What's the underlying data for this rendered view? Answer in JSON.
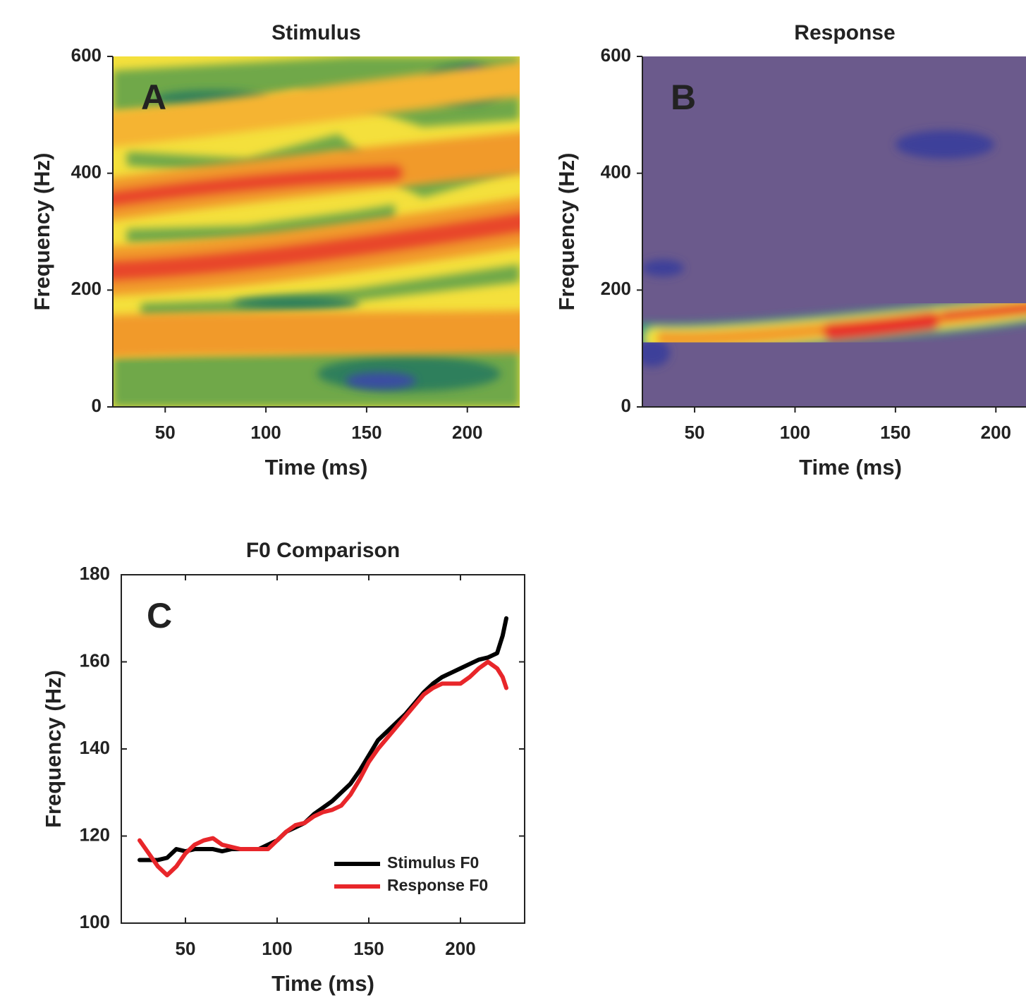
{
  "chart_data": [
    {
      "type": "spectrogram",
      "title": "Stimulus",
      "panel_label": "A",
      "xlabel": "Time (ms)",
      "ylabel": "Frequency (Hz)",
      "xlim": [
        24,
        226
      ],
      "ylim": [
        0,
        600
      ],
      "xticks": [
        50,
        100,
        150,
        200
      ],
      "yticks": [
        0,
        200,
        400,
        600
      ]
    },
    {
      "type": "spectrogram",
      "title": "Response",
      "panel_label": "B",
      "xlabel": "Time (ms)",
      "ylabel": "Frequency (Hz)",
      "xlim": [
        24,
        215
      ],
      "ylim": [
        0,
        600
      ],
      "xticks": [
        50,
        100,
        150,
        200
      ],
      "yticks": [
        0,
        200,
        400,
        600
      ]
    },
    {
      "type": "line",
      "title": "F0 Comparison",
      "panel_label": "C",
      "xlabel": "Time (ms)",
      "ylabel": "Frequency (Hz)",
      "xlim": [
        15,
        235
      ],
      "ylim": [
        100,
        180
      ],
      "xticks": [
        50,
        100,
        150,
        200
      ],
      "yticks": [
        100,
        120,
        140,
        160,
        180
      ],
      "legend": "lower right",
      "x": [
        25,
        30,
        35,
        40,
        45,
        50,
        55,
        60,
        65,
        70,
        75,
        80,
        85,
        90,
        95,
        100,
        105,
        110,
        115,
        120,
        125,
        130,
        135,
        140,
        145,
        150,
        155,
        160,
        165,
        170,
        175,
        180,
        185,
        190,
        195,
        200,
        205,
        210,
        215,
        220,
        223,
        225
      ],
      "series": [
        {
          "name": "Stimulus F0",
          "color": "#000000",
          "values": [
            114.5,
            114.5,
            114.5,
            115,
            117,
            116.5,
            117,
            117,
            117,
            116.5,
            117,
            117,
            117,
            117,
            118,
            119,
            121,
            122,
            123,
            125,
            126.5,
            128,
            130,
            132,
            135,
            138.5,
            142,
            144,
            146,
            148,
            150.5,
            153,
            155,
            156.5,
            157.5,
            158.5,
            159.5,
            160.5,
            161,
            162,
            166,
            170
          ]
        },
        {
          "name": "Response F0",
          "color": "#e8262a",
          "values": [
            119,
            116,
            113,
            111,
            113,
            116,
            118,
            119,
            119.5,
            118,
            117.5,
            117,
            117,
            117,
            117,
            119,
            121,
            122.5,
            123,
            124.5,
            125.5,
            126,
            127,
            129.5,
            133,
            137,
            140,
            142.5,
            145,
            147.5,
            150,
            152.5,
            154,
            155,
            155,
            155,
            156.5,
            158.5,
            160,
            158.5,
            156.5,
            154
          ]
        }
      ]
    }
  ]
}
